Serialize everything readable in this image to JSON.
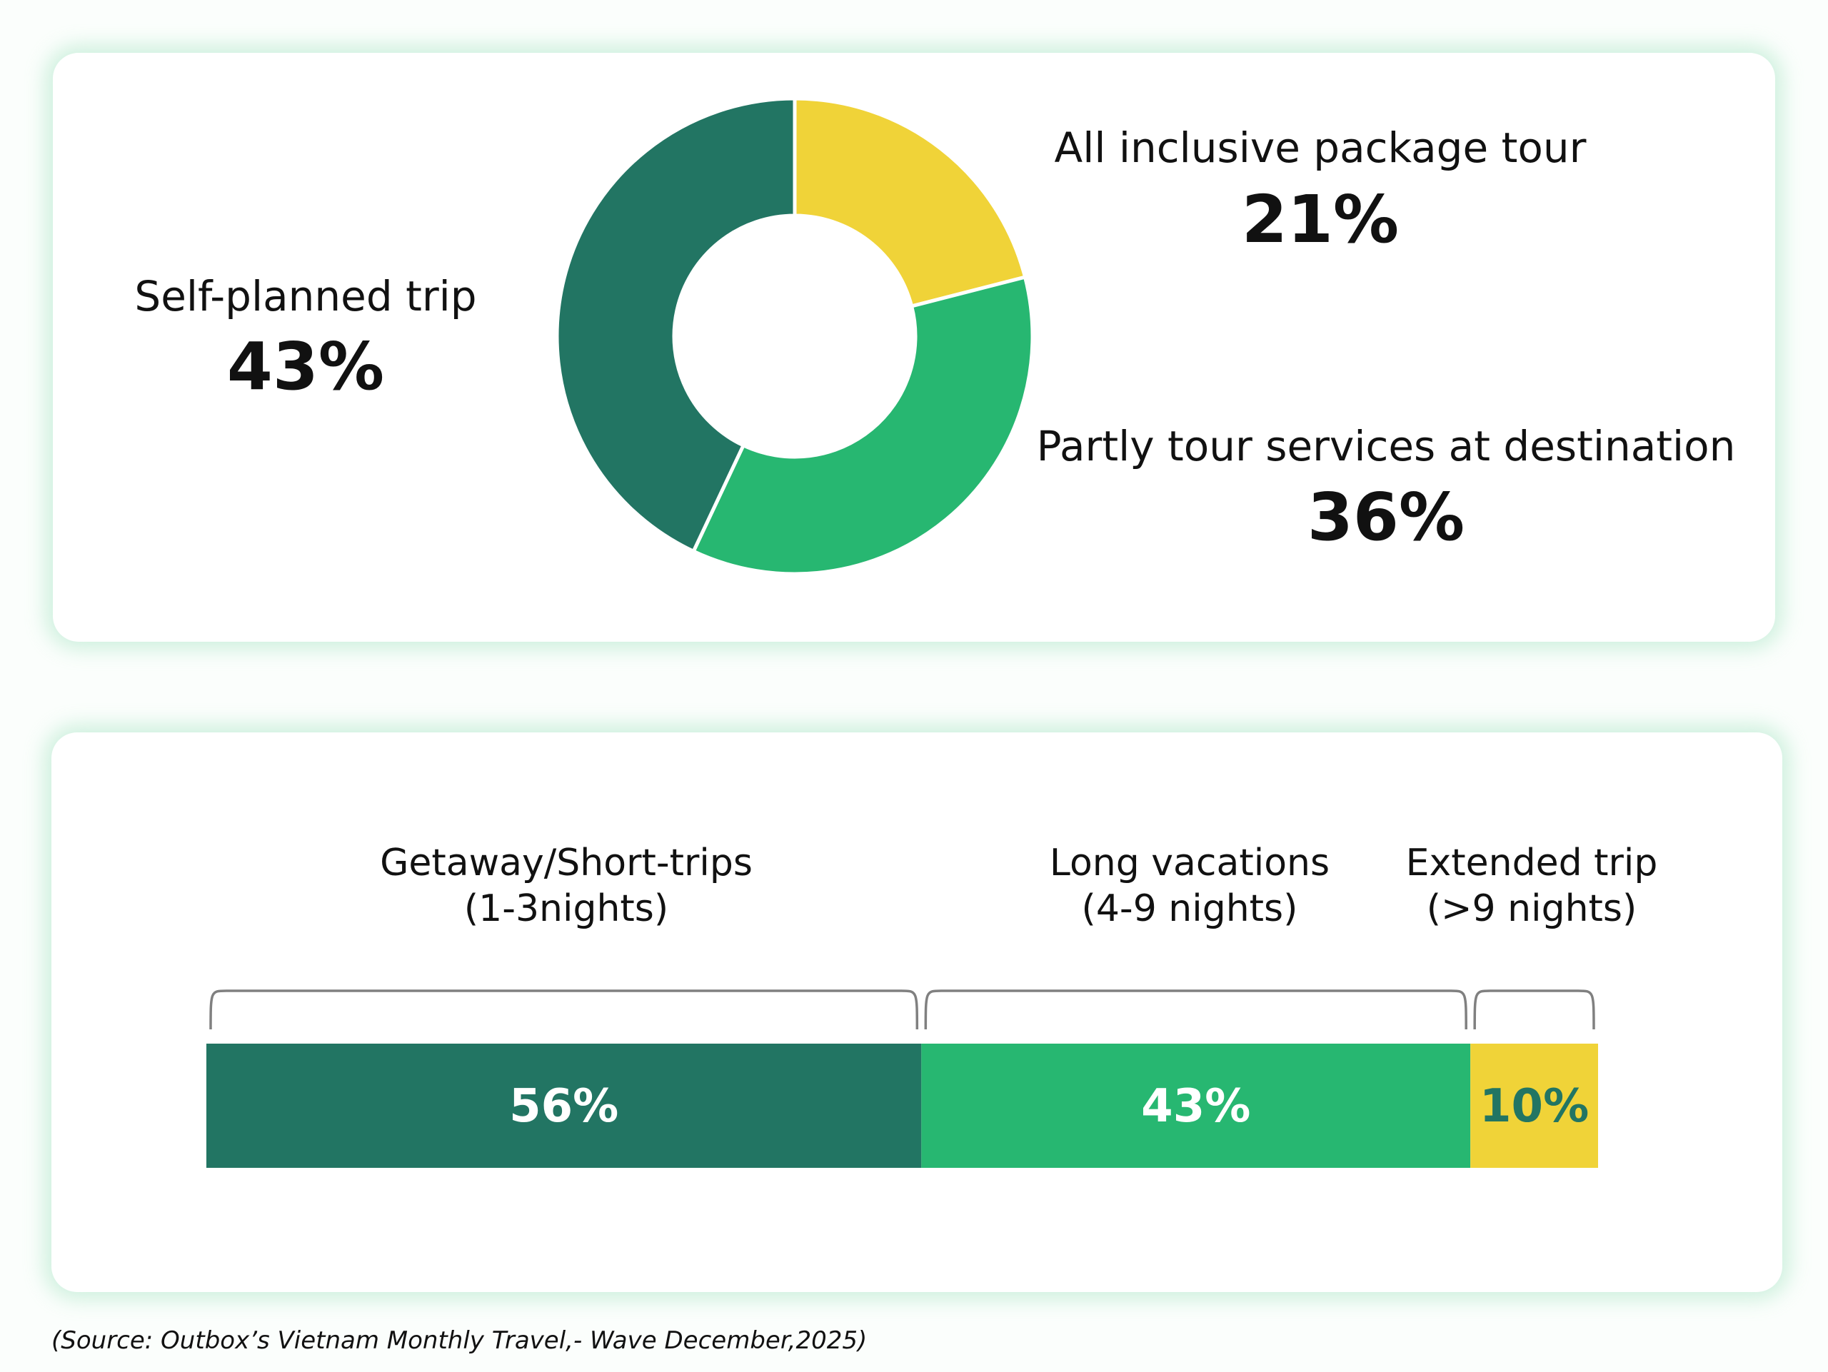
{
  "chart_data": [
    {
      "type": "pie",
      "variant": "donut",
      "start": "top",
      "direction": "clockwise",
      "slices": [
        {
          "label": "All inclusive package tour",
          "value": 21,
          "display": "21%",
          "color": "#f0d338"
        },
        {
          "label": "Partly tour services at destination",
          "value": 36,
          "display": "36%",
          "color": "#27b771"
        },
        {
          "label": "Self-planned trip",
          "value": 43,
          "display": "43%",
          "color": "#227563"
        }
      ]
    },
    {
      "type": "bar",
      "variant": "stacked-horizontal",
      "categories": [
        "Getaway/Short-trips (1-3nights)",
        "Long vacations (4-9 nights)",
        "Extended trip (>9 nights)"
      ],
      "values": [
        56,
        43,
        10
      ],
      "display": [
        "56%",
        "43%",
        "10%"
      ],
      "label_lines": [
        [
          "Getaway/Short-trips",
          "(1-3nights)"
        ],
        [
          "Long vacations",
          "(4-9 nights)"
        ],
        [
          "Extended trip",
          "(>9 nights)"
        ]
      ],
      "colors": [
        "#227563",
        "#27b771",
        "#f0d338"
      ],
      "value_label_colors": [
        "#ffffff",
        "#ffffff",
        "#227563"
      ]
    }
  ],
  "source": "(Source: Outbox’s Vietnam Monthly Travel,- Wave December,2025)"
}
